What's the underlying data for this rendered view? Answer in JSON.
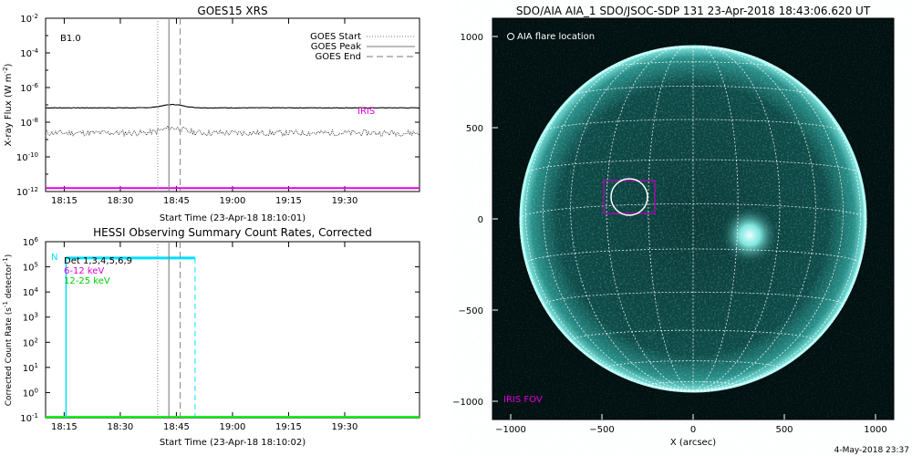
{
  "colors": {
    "axis": "#000000",
    "magenta": "#e000e0",
    "cyan": "#00e0ff",
    "green": "#00ff00",
    "sun_core": "#6fd9d3",
    "sun_bg": "#021010",
    "grid": "#ffffff",
    "fov_box": "#c000c0"
  },
  "footer": "4-May-2018 23:37",
  "chart_data": [
    {
      "id": "goes",
      "type": "line",
      "title": "GOES15 XRS",
      "xlabel": "Start Time (23-Apr-18 18:10:01)",
      "ylabel": "X-ray Flux (W m",
      "ylabel_sup": "-2",
      "ylabel_tail": ")",
      "scale": "log",
      "ylim_exp": [
        -12,
        -2
      ],
      "yticks": [
        {
          "exp": -2,
          "base": "10",
          "sup": "-2"
        },
        {
          "exp": -4,
          "base": "10",
          "sup": "-4"
        },
        {
          "exp": -6,
          "base": "10",
          "sup": "-6"
        },
        {
          "exp": -8,
          "base": "10",
          "sup": "-8"
        },
        {
          "exp": -10,
          "base": "10",
          "sup": "-10"
        },
        {
          "exp": -12,
          "base": "10",
          "sup": "-12"
        }
      ],
      "xlim": [
        "18:10:01",
        "19:50:00"
      ],
      "xticks": [
        "18:15",
        "18:30",
        "18:45",
        "19:00",
        "19:15",
        "19:30"
      ],
      "class_label": "B1.0",
      "iris_label": "IRIS",
      "legend": [
        {
          "label": "GOES Start",
          "style": "dotted"
        },
        {
          "label": "GOES Peak",
          "style": "solid"
        },
        {
          "label": "GOES End",
          "style": "dashed"
        }
      ],
      "event_times": {
        "start": "18:40:00",
        "peak": "18:43:00",
        "end": "18:46:00"
      },
      "series": [
        {
          "name": "long",
          "level_exp": -7.17,
          "bump_time": "18:44:00",
          "bump_exp": -6.98
        },
        {
          "name": "short",
          "level_exp": -8.62,
          "bump_time": "18:44:00",
          "bump_exp": -8.33
        },
        {
          "name": "iris",
          "level_exp": -11.8
        }
      ]
    },
    {
      "id": "hessi",
      "type": "line",
      "title": "HESSI Observing Summary Count Rates, Corrected",
      "xlabel": "Start Time (23-Apr-18 18:10:02)",
      "ylabel": "Corrected Count Rate (s",
      "ylabel_sup": "-1",
      "ylabel_mid": " detector",
      "ylabel_sup2": "-1",
      "ylabel_tail": ")",
      "scale": "log",
      "ylim_exp": [
        -1,
        6
      ],
      "yticks": [
        {
          "exp": 6,
          "base": "10",
          "sup": "6"
        },
        {
          "exp": 5,
          "base": "10",
          "sup": "5"
        },
        {
          "exp": 4,
          "base": "10",
          "sup": "4"
        },
        {
          "exp": 3,
          "base": "10",
          "sup": "3"
        },
        {
          "exp": 2,
          "base": "10",
          "sup": "2"
        },
        {
          "exp": 1,
          "base": "10",
          "sup": "1"
        },
        {
          "exp": 0,
          "base": "10",
          "sup": "0"
        },
        {
          "exp": -1,
          "base": "10",
          "sup": "-1"
        }
      ],
      "xlim": [
        "18:10:02",
        "19:50:00"
      ],
      "xticks": [
        "18:15",
        "18:30",
        "18:45",
        "19:00",
        "19:15",
        "19:30"
      ],
      "n_label": "N",
      "legend": [
        {
          "label": "Det 1,3,4,5,6,9",
          "color": "#000000"
        },
        {
          "label": "6-12 keV",
          "color": "#e000e0"
        },
        {
          "label": "12-25 keV",
          "color": "#00cc00"
        }
      ],
      "event_times": {
        "start": "18:40:00",
        "peak": "18:43:00",
        "end": "18:46:00"
      },
      "night_end": "18:50:00",
      "series": [
        {
          "name": "night-flag",
          "start": "18:15:30",
          "end": "18:50:00",
          "level_exp": 5.35
        },
        {
          "name": "12-25 keV",
          "level_exp": -1
        }
      ]
    },
    {
      "id": "aia",
      "type": "image",
      "title": "SDO/AIA AIA_1 SDO/JSOC-SDP 131 23-Apr-2018 18:43:06.620 UT",
      "xlabel": "X (arcsec)",
      "xlim": [
        -1100,
        1100
      ],
      "ylim": [
        -1100,
        1100
      ],
      "xticks": [
        -1000,
        -500,
        0,
        500,
        1000
      ],
      "yticks": [
        -1000,
        -500,
        0,
        500,
        1000
      ],
      "xtick_labels": [
        "−1000",
        "−500",
        "0",
        "500",
        "1000"
      ],
      "ytick_labels": [
        "−1000",
        "−500",
        "0",
        "500",
        "1000"
      ],
      "solar_radius": 950,
      "flare_legend": "AIA flare location",
      "fov_label": "IRIS FOV",
      "flare_center": [
        -350,
        120
      ],
      "flare_radius": 100,
      "fov_box": {
        "x0": -490,
        "x1": -210,
        "y0": 30,
        "y1": 210
      },
      "active_region": [
        310,
        -90
      ]
    }
  ]
}
